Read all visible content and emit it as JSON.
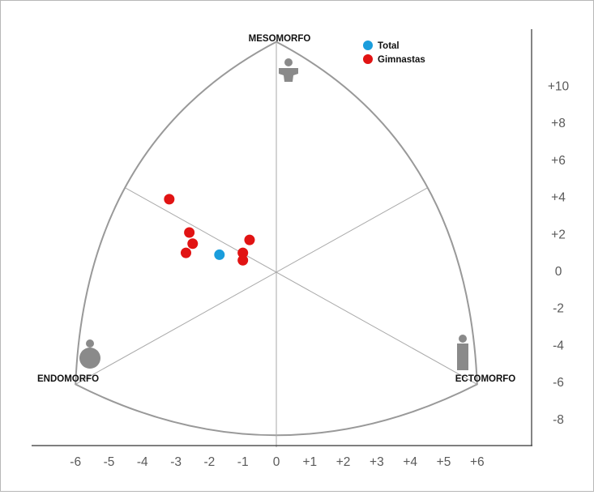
{
  "chart_data": {
    "type": "scatter",
    "vertices": {
      "top": "MESOMORFO",
      "left": "ENDOMORFO",
      "right": "ECTOMORFO"
    },
    "x_ticks": [
      "-6",
      "-5",
      "-4",
      "-3",
      "-2",
      "-1",
      "0",
      "+1",
      "+2",
      "+3",
      "+4",
      "+5",
      "+6"
    ],
    "y_ticks": [
      "+10",
      "+8",
      "+6",
      "+4",
      "+2",
      "0",
      "-2",
      "-4",
      "-6",
      "-8"
    ],
    "xlim": [
      -6,
      6
    ],
    "ylim": [
      -8,
      10
    ],
    "series": [
      {
        "name": "Total",
        "color": "#1a9ddc",
        "points": [
          [
            -1.7,
            0.9
          ]
        ]
      },
      {
        "name": "Gimnastas",
        "color": "#e11313",
        "points": [
          [
            -3.2,
            3.9
          ],
          [
            -2.6,
            2.1
          ],
          [
            -2.5,
            1.5
          ],
          [
            -2.7,
            1.0
          ],
          [
            -0.8,
            1.7
          ],
          [
            -1.0,
            1.0
          ],
          [
            -1.0,
            0.6
          ]
        ]
      }
    ],
    "colors": {
      "outline": "#999999",
      "inner_lines": "#aaaaaa",
      "axis": "#333333",
      "silhouette": "#8a8a8a"
    }
  }
}
